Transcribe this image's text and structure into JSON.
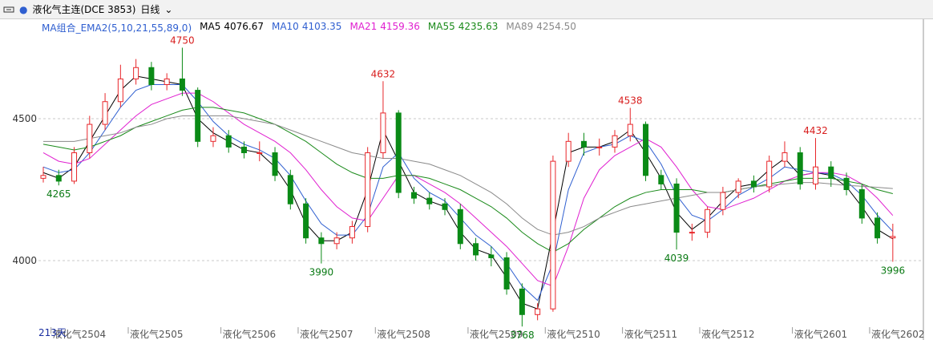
{
  "header": {
    "title": "液化气主连(DCE 3853)",
    "period": "日线"
  },
  "chart_data": {
    "type": "candlestick",
    "indicator": "MA组合_EMA2(5,10,21,55,89,0)",
    "categories": [
      null,
      "液化气2504",
      null,
      null,
      null,
      null,
      "液化气2505",
      null,
      null,
      null,
      null,
      null,
      "液化气2506",
      null,
      null,
      null,
      null,
      "液化气2507",
      null,
      null,
      null,
      null,
      "液化气2508",
      null,
      null,
      null,
      null,
      null,
      "液化气2509",
      null,
      null,
      null,
      null,
      "液化气2510",
      null,
      null,
      null,
      null,
      "液化气2511",
      null,
      null,
      null,
      null,
      "液化气2512",
      null,
      null,
      null,
      null,
      null,
      "液化气2601",
      null,
      null,
      null,
      null,
      "液化气2602",
      null
    ],
    "open": [
      4290,
      4300,
      4280,
      4380,
      4480,
      4560,
      4640,
      4680,
      4620,
      4640,
      4600,
      4420,
      4440,
      4400,
      4380,
      4380,
      4300,
      4200,
      4080,
      4060,
      4080,
      4120,
      4380,
      4520,
      4240,
      4220,
      4200,
      4180,
      4060,
      4020,
      4010,
      3900,
      3810,
      3830,
      4350,
      4420,
      4400,
      4400,
      4440,
      4480,
      4300,
      4270,
      4100,
      4100,
      4180,
      4240,
      4280,
      4260,
      4350,
      4380,
      4270,
      4330,
      4290,
      4250,
      4150,
      4080
    ],
    "high": [
      4330,
      4320,
      4400,
      4510,
      4590,
      4690,
      4710,
      4700,
      4660,
      4750,
      4610,
      4470,
      4460,
      4420,
      4420,
      4400,
      4320,
      4220,
      4100,
      4100,
      4140,
      4400,
      4632,
      4530,
      4260,
      4240,
      4220,
      4200,
      4080,
      4050,
      4030,
      3920,
      3850,
      4370,
      4450,
      4450,
      4430,
      4460,
      4538,
      4490,
      4320,
      4290,
      4130,
      4190,
      4260,
      4290,
      4300,
      4370,
      4420,
      4400,
      4432,
      4350,
      4310,
      4270,
      4170,
      4130
    ],
    "low": [
      4275,
      4265,
      4270,
      4360,
      4460,
      4540,
      4620,
      4600,
      4600,
      4580,
      4400,
      4400,
      4380,
      4360,
      4350,
      4280,
      4180,
      4060,
      3990,
      4040,
      4060,
      4100,
      4360,
      4220,
      4200,
      4180,
      4160,
      4040,
      4000,
      3980,
      3880,
      3768,
      3790,
      3820,
      4330,
      4370,
      4370,
      4380,
      4420,
      4280,
      4250,
      4039,
      4070,
      4080,
      4160,
      4220,
      4240,
      4240,
      4330,
      4250,
      4250,
      4260,
      4230,
      4130,
      4060,
      3996
    ],
    "close": [
      4300,
      4280,
      4380,
      4480,
      4560,
      4640,
      4680,
      4620,
      4640,
      4600,
      4420,
      4440,
      4400,
      4380,
      4380,
      4300,
      4200,
      4080,
      4060,
      4080,
      4120,
      4380,
      4520,
      4240,
      4220,
      4200,
      4180,
      4060,
      4020,
      4010,
      3900,
      3810,
      3830,
      4350,
      4420,
      4400,
      4400,
      4440,
      4480,
      4300,
      4270,
      4100,
      4100,
      4180,
      4240,
      4280,
      4260,
      4350,
      4380,
      4270,
      4330,
      4290,
      4250,
      4150,
      4080,
      4085
    ],
    "up_color": "#e8262a",
    "down_color": "#0a8a16",
    "series": [
      {
        "name": "MA5",
        "legend_value": "4076.67",
        "color": "#000000",
        "values": [
          4310,
          4290,
          4330,
          4420,
          4510,
          4600,
          4650,
          4640,
          4630,
          4620,
          4500,
          4450,
          4420,
          4390,
          4380,
          4330,
          4250,
          4130,
          4070,
          4070,
          4100,
          4250,
          4460,
          4350,
          4240,
          4210,
          4190,
          4100,
          4040,
          4020,
          3940,
          3850,
          3830,
          4100,
          4380,
          4400,
          4400,
          4420,
          4460,
          4380,
          4290,
          4170,
          4110,
          4150,
          4210,
          4260,
          4270,
          4320,
          4360,
          4300,
          4310,
          4300,
          4260,
          4190,
          4110,
          4077
        ]
      },
      {
        "name": "MA10",
        "legend_value": "4103.35",
        "color": "#2f5fd0",
        "values": [
          4330,
          4310,
          4320,
          4380,
          4460,
          4540,
          4600,
          4620,
          4620,
          4620,
          4560,
          4490,
          4440,
          4410,
          4390,
          4360,
          4300,
          4210,
          4130,
          4090,
          4090,
          4160,
          4330,
          4380,
          4290,
          4240,
          4210,
          4150,
          4090,
          4050,
          3990,
          3910,
          3860,
          3990,
          4250,
          4380,
          4400,
          4410,
          4440,
          4420,
          4340,
          4230,
          4160,
          4140,
          4180,
          4230,
          4260,
          4290,
          4330,
          4320,
          4310,
          4305,
          4280,
          4230,
          4160,
          4103
        ]
      },
      {
        "name": "MA21",
        "legend_value": "4159.36",
        "color": "#e020d0",
        "values": [
          4380,
          4350,
          4340,
          4360,
          4410,
          4460,
          4510,
          4550,
          4570,
          4590,
          4590,
          4560,
          4520,
          4480,
          4450,
          4420,
          4380,
          4320,
          4250,
          4190,
          4150,
          4140,
          4220,
          4300,
          4300,
          4270,
          4240,
          4200,
          4150,
          4100,
          4050,
          3990,
          3930,
          3910,
          4050,
          4220,
          4320,
          4370,
          4400,
          4430,
          4400,
          4330,
          4250,
          4190,
          4180,
          4200,
          4220,
          4250,
          4280,
          4300,
          4310,
          4310,
          4300,
          4270,
          4220,
          4159
        ]
      },
      {
        "name": "MA55",
        "legend_value": "4235.63",
        "color": "#1a8a1a",
        "values": [
          4410,
          4400,
          4390,
          4400,
          4420,
          4440,
          4470,
          4490,
          4510,
          4530,
          4540,
          4540,
          4530,
          4520,
          4500,
          4480,
          4450,
          4420,
          4380,
          4340,
          4310,
          4290,
          4290,
          4300,
          4300,
          4290,
          4270,
          4250,
          4220,
          4190,
          4150,
          4100,
          4060,
          4030,
          4060,
          4110,
          4150,
          4190,
          4220,
          4240,
          4250,
          4250,
          4250,
          4240,
          4240,
          4250,
          4260,
          4270,
          4280,
          4290,
          4290,
          4290,
          4280,
          4270,
          4250,
          4236
        ]
      },
      {
        "name": "MA89",
        "legend_value": "4254.50",
        "color": "#8a8a8a",
        "values": [
          4420,
          4420,
          4420,
          4430,
          4440,
          4450,
          4470,
          4480,
          4500,
          4510,
          4510,
          4510,
          4510,
          4500,
          4490,
          4480,
          4460,
          4440,
          4420,
          4400,
          4380,
          4370,
          4360,
          4360,
          4350,
          4340,
          4320,
          4300,
          4270,
          4240,
          4200,
          4150,
          4110,
          4090,
          4100,
          4120,
          4150,
          4170,
          4190,
          4200,
          4210,
          4220,
          4230,
          4240,
          4240,
          4250,
          4260,
          4265,
          4270,
          4275,
          4275,
          4270,
          4265,
          4262,
          4258,
          4254
        ]
      }
    ],
    "annotations": [
      4265,
      4750,
      3990,
      4632,
      3768,
      4538,
      4039,
      4432,
      3996
    ],
    "ylim": [
      3760,
      4805
    ],
    "yticks": [
      4000,
      4500
    ],
    "grid": true,
    "day_count": "213天"
  }
}
